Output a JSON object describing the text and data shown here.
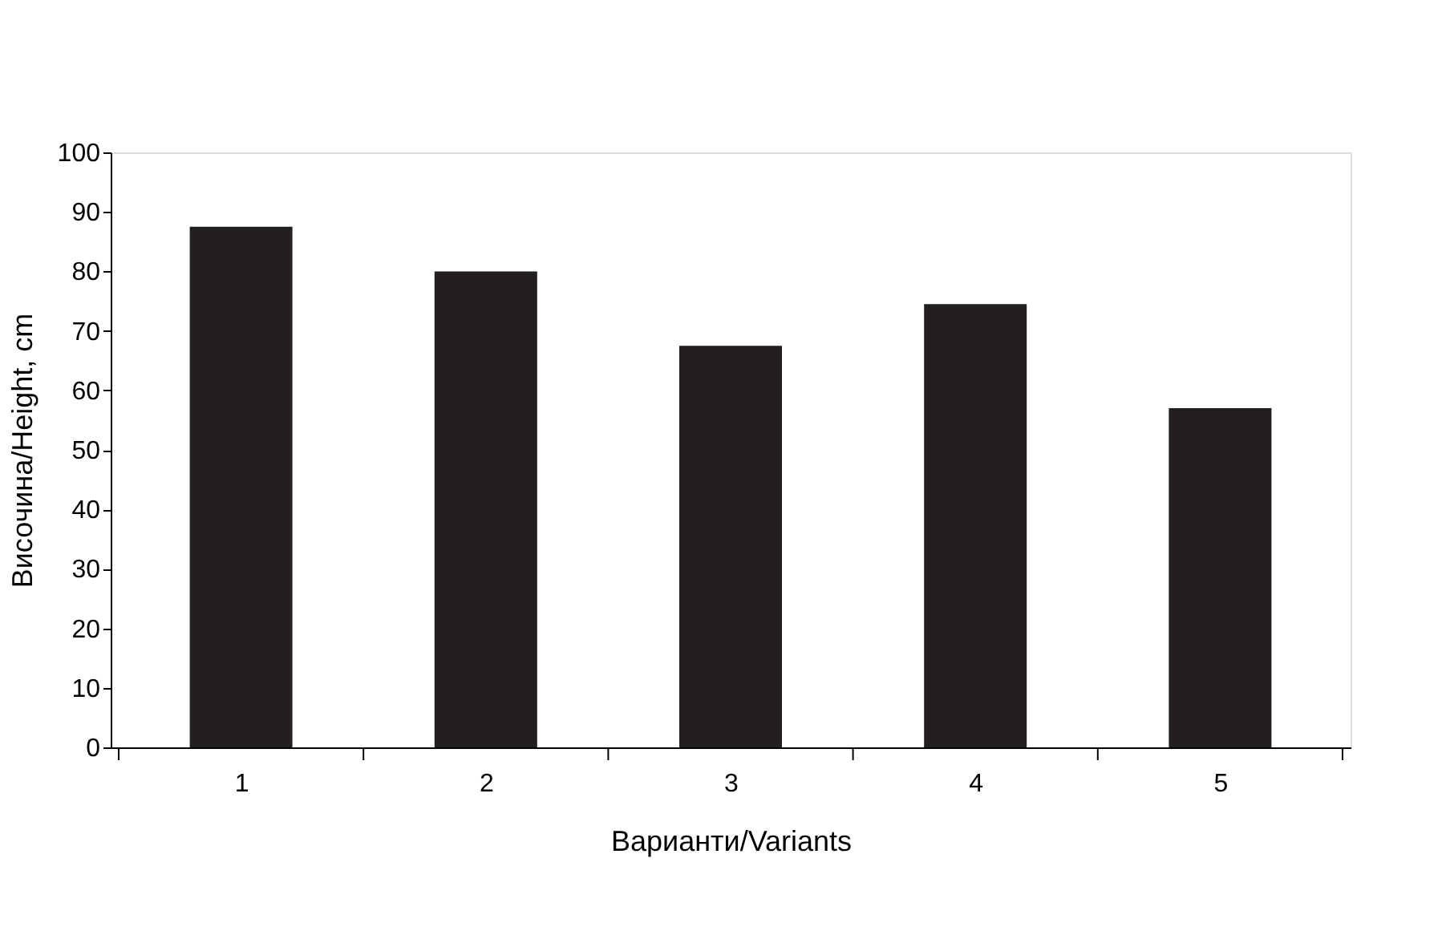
{
  "chart_data": {
    "type": "bar",
    "categories": [
      "1",
      "2",
      "3",
      "4",
      "5"
    ],
    "values": [
      87.5,
      80,
      67.5,
      74.5,
      57
    ],
    "color": "#231f20",
    "xlabel": "Варианти/Variants",
    "ylabel": "Височина/Height, cm",
    "ylim": [
      0,
      100
    ],
    "yticks": [
      0,
      10,
      20,
      30,
      40,
      50,
      60,
      70,
      80,
      90,
      100
    ],
    "grid": false
  }
}
